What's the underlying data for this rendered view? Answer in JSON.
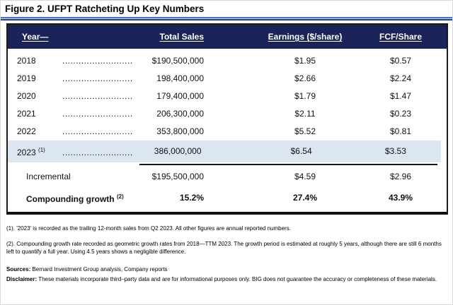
{
  "title": "Figure 2. UFPT Ratcheting Up Key Numbers",
  "leader_dots": ".................................",
  "table": {
    "headers": [
      "Year—",
      "Total Sales",
      "Earnings ($/share)",
      "FCF/Share"
    ],
    "rows": [
      {
        "year": "2018",
        "sales": "$190,500,000",
        "earnings": "$1.95",
        "fcf": "$0.57"
      },
      {
        "year": "2019",
        "sales": "198,400,000",
        "earnings": "$2.66",
        "fcf": "$2.24"
      },
      {
        "year": "2020",
        "sales": "179,400,000",
        "earnings": "$1.79",
        "fcf": "$1.47"
      },
      {
        "year": "2021",
        "sales": "206,300,000",
        "earnings": "$2.11",
        "fcf": "$0.23"
      },
      {
        "year": "2022",
        "sales": "353,800,000",
        "earnings": "$5.52",
        "fcf": "$0.81"
      },
      {
        "year": "2023",
        "note": "(1)",
        "sales": "386,000,000",
        "earnings": "$6.54",
        "fcf": "$3.53"
      }
    ],
    "summary": [
      {
        "label": "Incremental",
        "sales": "$195,500,000",
        "earnings": "$4.59",
        "fcf": "$2.96"
      },
      {
        "label": "Compounding growth",
        "note": "(2)",
        "sales": "15.2%",
        "earnings": "27.4%",
        "fcf": "43.9%"
      }
    ]
  },
  "footnotes": [
    "(1). '2023' is recorded as the trailing 12-month sales from Q2 2023. All other figures are annual reported numbers.",
    "(2). Compounding growth rate recorded as geometric growth rates from 2018—TTM 2023. The growth period is estimated at roughly 5 years, although there are still 6 months left to quantify a full year. Using 4.5 years shows a negligible difference."
  ],
  "sources_label": "Sources:",
  "sources_text": "Bernard Investment Group analysis, Company reports",
  "disclaimer_label": "Disclaimer:",
  "disclaimer_text": "These materials incorporate third–party data and are for informational purposes only. BIG does not guarantee the accuracy or completeness of these materials.",
  "colors": {
    "header_navy": "#1a2458",
    "highlight_blue": "#dce6f2",
    "rule_blue": "#4a72c0",
    "rule_dark_blue": "#2d3f94",
    "border_black": "#1a1a1a"
  },
  "chart_data": {
    "type": "table",
    "title": "Figure 2. UFPT Ratcheting Up Key Numbers",
    "columns": [
      "Year",
      "Total Sales",
      "Earnings ($/share)",
      "FCF/Share"
    ],
    "rows": [
      [
        "2018",
        190500000,
        1.95,
        0.57
      ],
      [
        "2019",
        198400000,
        2.66,
        2.24
      ],
      [
        "2020",
        179400000,
        1.79,
        1.47
      ],
      [
        "2021",
        206300000,
        2.11,
        0.23
      ],
      [
        "2022",
        353800000,
        5.52,
        0.81
      ],
      [
        "2023 (TTM)",
        386000000,
        6.54,
        3.53
      ]
    ],
    "summary_rows": [
      [
        "Incremental",
        195500000,
        4.59,
        2.96
      ],
      [
        "Compounding growth",
        "15.2%",
        "27.4%",
        "43.9%"
      ]
    ],
    "notes": [
      "2023 is trailing 12-month from Q2 2023",
      "Compounding growth is geometric growth rate 2018—TTM 2023 over ~5 years"
    ]
  }
}
